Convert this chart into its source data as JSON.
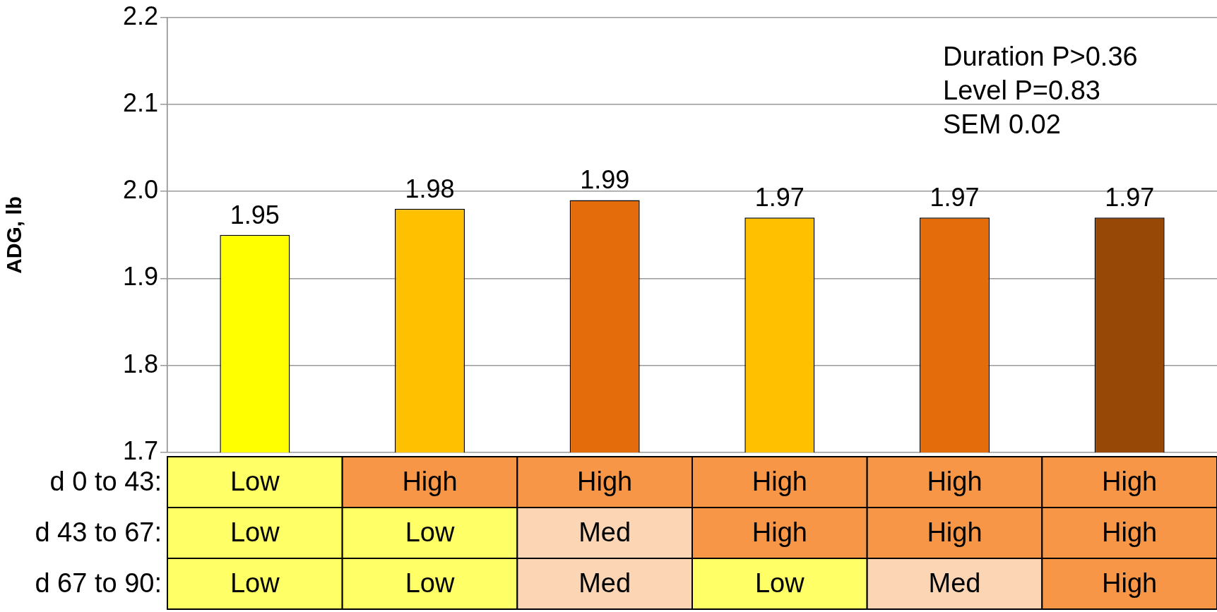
{
  "chart_data": {
    "type": "bar",
    "ylabel": "ADG, lb",
    "xlabel": "d 0 to 43:\nd 43 to 67:\nd 67 to 90:",
    "categories": [
      "Low\nLow\nLow",
      "High\nLow\nLow",
      "High\nMed\nMed",
      "High\nHigh\nLow",
      "High\nHigh\nMed",
      "High\nHigh\nHigh"
    ],
    "values": [
      1.95,
      1.98,
      1.99,
      1.97,
      1.97,
      1.97
    ],
    "colors": [
      "#ffff00",
      "#ffc000",
      "#e46c0a",
      "#ffc000",
      "#e46c0a",
      "#974706"
    ],
    "ylim": [
      1.7,
      2.2
    ],
    "yticks": [
      1.7,
      1.8,
      1.9,
      {
        "value": 2,
        "label": "2.0"
      },
      2.1,
      2.2
    ],
    "grid": "y",
    "data_labels": true,
    "annotations": [
      "Duration P>0.36",
      "Level P=0.83",
      "SEM 0.02"
    ]
  }
}
